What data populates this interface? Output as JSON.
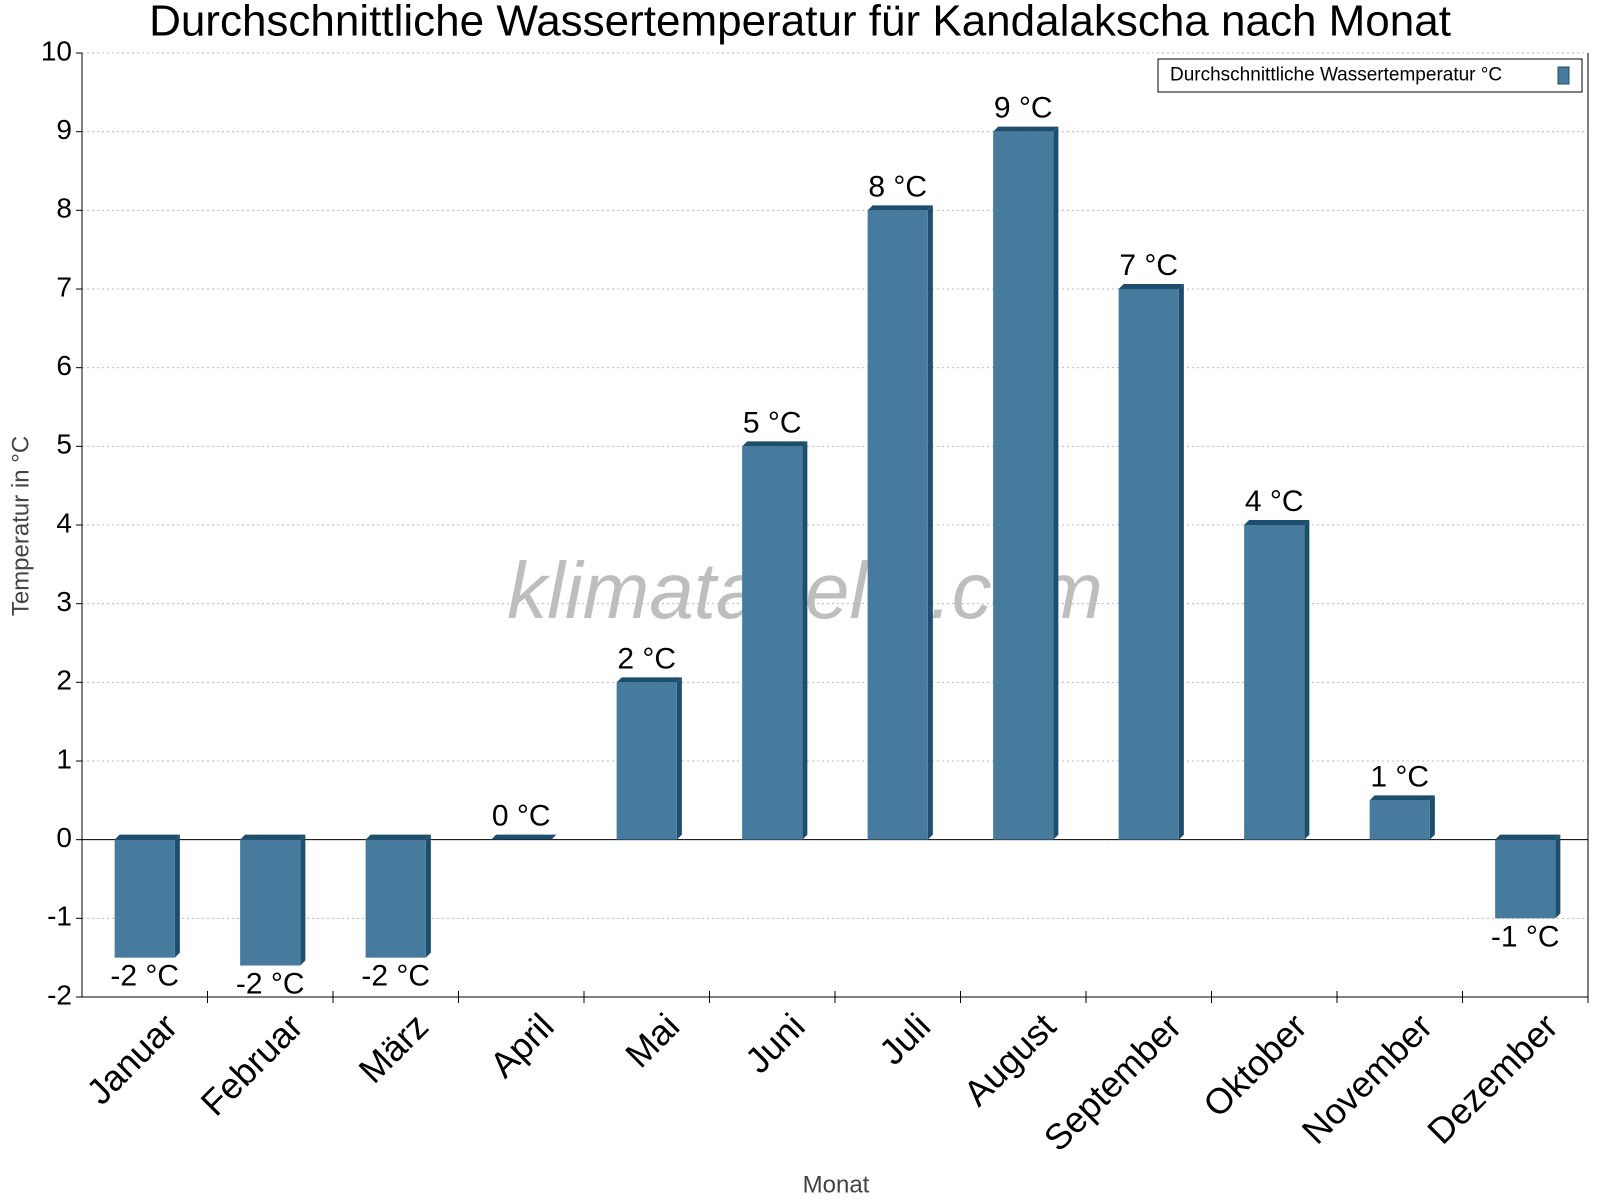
{
  "chart_data": {
    "type": "bar",
    "title": "Durchschnittliche Wassertemperatur für Kandalakscha nach Monat",
    "x_label": "Monat",
    "y_label": "Temperatur in °C",
    "watermark": "klimatabelle.com",
    "categories": [
      "Januar",
      "Februar",
      "März",
      "April",
      "Mai",
      "Juni",
      "Juli",
      "August",
      "September",
      "Oktober",
      "November",
      "Dezember"
    ],
    "series": [
      {
        "name": "Durchschnittliche Wassertemperatur °C",
        "color": "#477b9d",
        "values": [
          -1.5,
          -1.6,
          -1.5,
          0,
          2,
          5,
          8,
          9,
          7,
          4,
          0.5,
          -1
        ],
        "value_labels": [
          "-2 °C",
          "-2 °C",
          "-2 °C",
          "0 °C",
          "2 °C",
          "5 °C",
          "8 °C",
          "9 °C",
          "7 °C",
          "4 °C",
          "1 °C",
          "-1 °C"
        ]
      }
    ],
    "ylim": [
      -2,
      10
    ],
    "yticks": [
      -2,
      -1,
      0,
      1,
      2,
      3,
      4,
      5,
      6,
      7,
      8,
      9,
      10
    ],
    "grid": true,
    "legend": "top-right"
  }
}
